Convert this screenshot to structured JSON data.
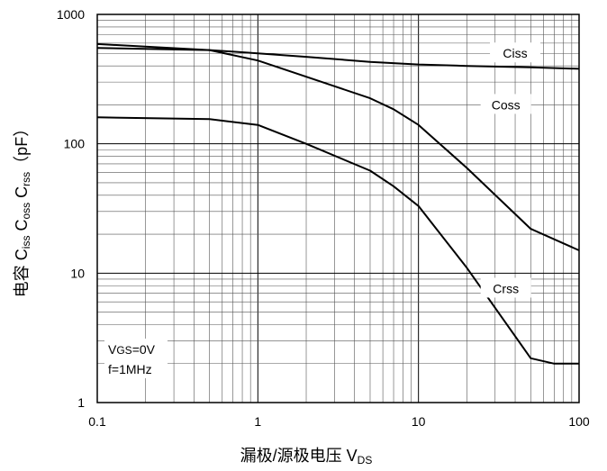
{
  "chart_data": {
    "type": "line",
    "x_scale": "log",
    "y_scale": "log",
    "xlim": [
      0.1,
      100
    ],
    "ylim": [
      1,
      1000
    ],
    "x_ticks": [
      "0.1",
      "1",
      "10",
      "100"
    ],
    "y_ticks": [
      "1",
      "10",
      "100",
      "1000"
    ],
    "xlabel": "漏极/源极电压 VDS",
    "xlabel_main": "漏极/源极电压 V",
    "xlabel_sub": "DS",
    "ylabel": "电容 Ciss Coss Crss（pF）",
    "ylabel_parts": {
      "prefix": "电容 ",
      "c1": "C",
      "c1_sub": "iss",
      "c2": "C",
      "c2_sub": "oss",
      "c3": "C",
      "c3_sub": "rss",
      "suffix": "（pF）"
    },
    "grid": true,
    "series": [
      {
        "name": "Ciss",
        "x": [
          0.1,
          0.5,
          1,
          2,
          5,
          10,
          20,
          50,
          100
        ],
        "y": [
          550,
          530,
          500,
          470,
          430,
          410,
          400,
          390,
          380
        ]
      },
      {
        "name": "Coss",
        "x": [
          0.1,
          0.5,
          1,
          2,
          5,
          7,
          10,
          20,
          50,
          100
        ],
        "y": [
          590,
          530,
          440,
          330,
          225,
          185,
          140,
          65,
          22,
          15
        ]
      },
      {
        "name": "Crss",
        "x": [
          0.1,
          0.5,
          1,
          2,
          5,
          7,
          10,
          20,
          50,
          70,
          100
        ],
        "y": [
          160,
          155,
          140,
          100,
          62,
          47,
          33,
          11,
          2.2,
          2,
          2
        ]
      }
    ],
    "annotations": {
      "line1_main": "V",
      "line1_sub": "GS",
      "line1_rest": "=0V",
      "line2": "f=1MHz"
    }
  }
}
